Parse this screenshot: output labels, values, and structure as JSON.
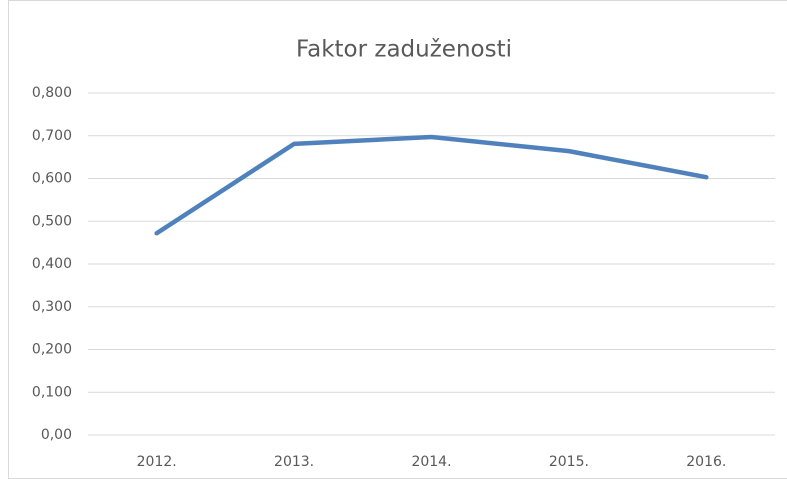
{
  "chart_data": {
    "type": "line",
    "title": "Faktor zaduženosti",
    "categories": [
      "2012.",
      "2013.",
      "2014.",
      "2015.",
      "2016."
    ],
    "series": [
      {
        "name": "Faktor zaduženosti",
        "color": "#4f81bd",
        "values": [
          0.472,
          0.681,
          0.697,
          0.664,
          0.603
        ]
      }
    ],
    "ylim": [
      0,
      0.8
    ],
    "yticks": [
      {
        "value": 0,
        "label": "0,00"
      },
      {
        "value": 0.1,
        "label": "0,100"
      },
      {
        "value": 0.2,
        "label": "0,200"
      },
      {
        "value": 0.3,
        "label": "0,300"
      },
      {
        "value": 0.4,
        "label": "0,400"
      },
      {
        "value": 0.5,
        "label": "0,500"
      },
      {
        "value": 0.6,
        "label": "0,600"
      },
      {
        "value": 0.7,
        "label": "0,700"
      },
      {
        "value": 0.8,
        "label": "0,800"
      }
    ],
    "grid": true
  }
}
